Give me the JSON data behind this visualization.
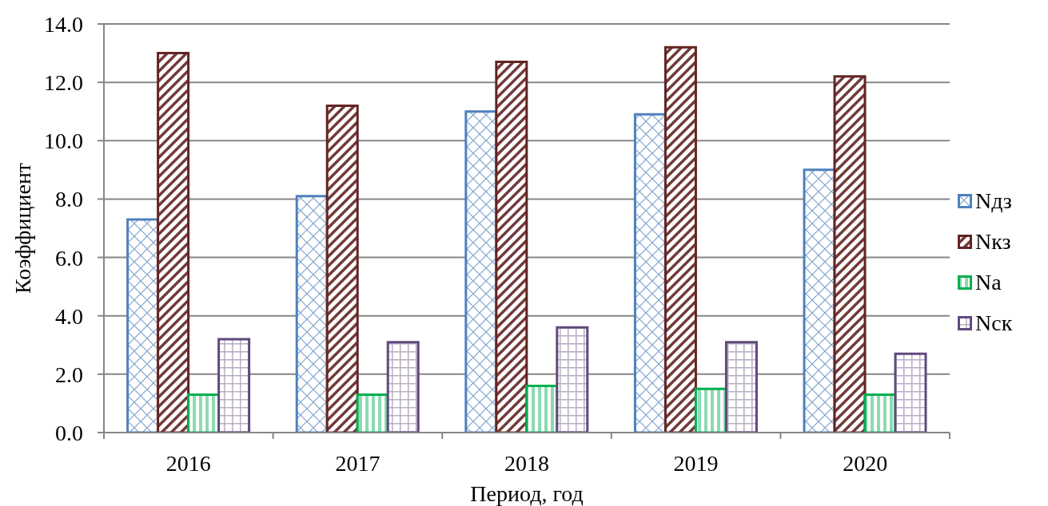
{
  "chart_data": {
    "type": "bar",
    "xlabel": "Период, год",
    "ylabel": "Коэффициент",
    "categories": [
      "2016",
      "2017",
      "2018",
      "2019",
      "2020"
    ],
    "series": [
      {
        "name": "Nдз",
        "color": "#4f81bd",
        "values": [
          7.3,
          8.1,
          11.0,
          10.9,
          9.0
        ]
      },
      {
        "name": "Nкз",
        "color": "#632523",
        "values": [
          13.0,
          11.2,
          12.7,
          13.2,
          12.2
        ]
      },
      {
        "name": "Na",
        "color": "#00b050",
        "values": [
          1.3,
          1.3,
          1.6,
          1.5,
          1.3
        ]
      },
      {
        "name": "Nск",
        "color": "#604a7b",
        "values": [
          3.2,
          3.1,
          3.6,
          3.1,
          2.7
        ]
      }
    ],
    "ylim": [
      0,
      14
    ],
    "yticks": [
      {
        "value": 0,
        "label": "0.0"
      },
      {
        "value": 2,
        "label": "2.0"
      },
      {
        "value": 4,
        "label": "4.0"
      },
      {
        "value": 6,
        "label": "6.0"
      },
      {
        "value": 8,
        "label": "8.0"
      },
      {
        "value": 10,
        "label": "10.0"
      },
      {
        "value": 12,
        "label": "12.0"
      },
      {
        "value": 14,
        "label": "14.0"
      }
    ],
    "grid": "y",
    "legend": "right"
  }
}
